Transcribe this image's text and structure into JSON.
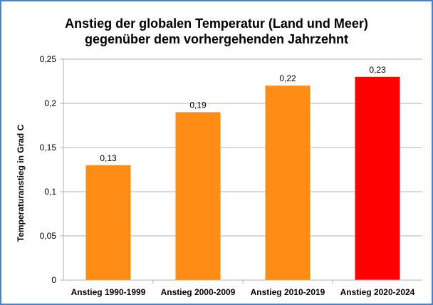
{
  "chart_data": {
    "type": "bar",
    "title": [
      "Anstieg der globalen Temperatur (Land und Meer)",
      "gegenüber dem vorhergehenden Jahrzehnt"
    ],
    "ylabel": "Temperaturanstieg in Grad C",
    "xlabel": "",
    "categories": [
      "Anstieg 1990-1999",
      "Anstieg 2000-2009",
      "Anstieg 2010-2019",
      "Anstieg 2020-2024"
    ],
    "values": [
      0.13,
      0.19,
      0.22,
      0.23
    ],
    "data_labels": [
      "0,13",
      "0,19",
      "0,22",
      "0,23"
    ],
    "bar_colors": [
      "#ff8c14",
      "#ff8c14",
      "#ff8c14",
      "#ff0000"
    ],
    "ylim": [
      0,
      0.25
    ],
    "yticks": [
      0,
      0.05,
      0.1,
      0.15,
      0.2,
      0.25
    ],
    "ytick_labels": [
      "0",
      "0,05",
      "0,1",
      "0,15",
      "0,2",
      "0,25"
    ],
    "grid": true,
    "legend": "none"
  },
  "colors": {
    "frame": "#4f81bd",
    "grid": "#b3b3b3"
  }
}
